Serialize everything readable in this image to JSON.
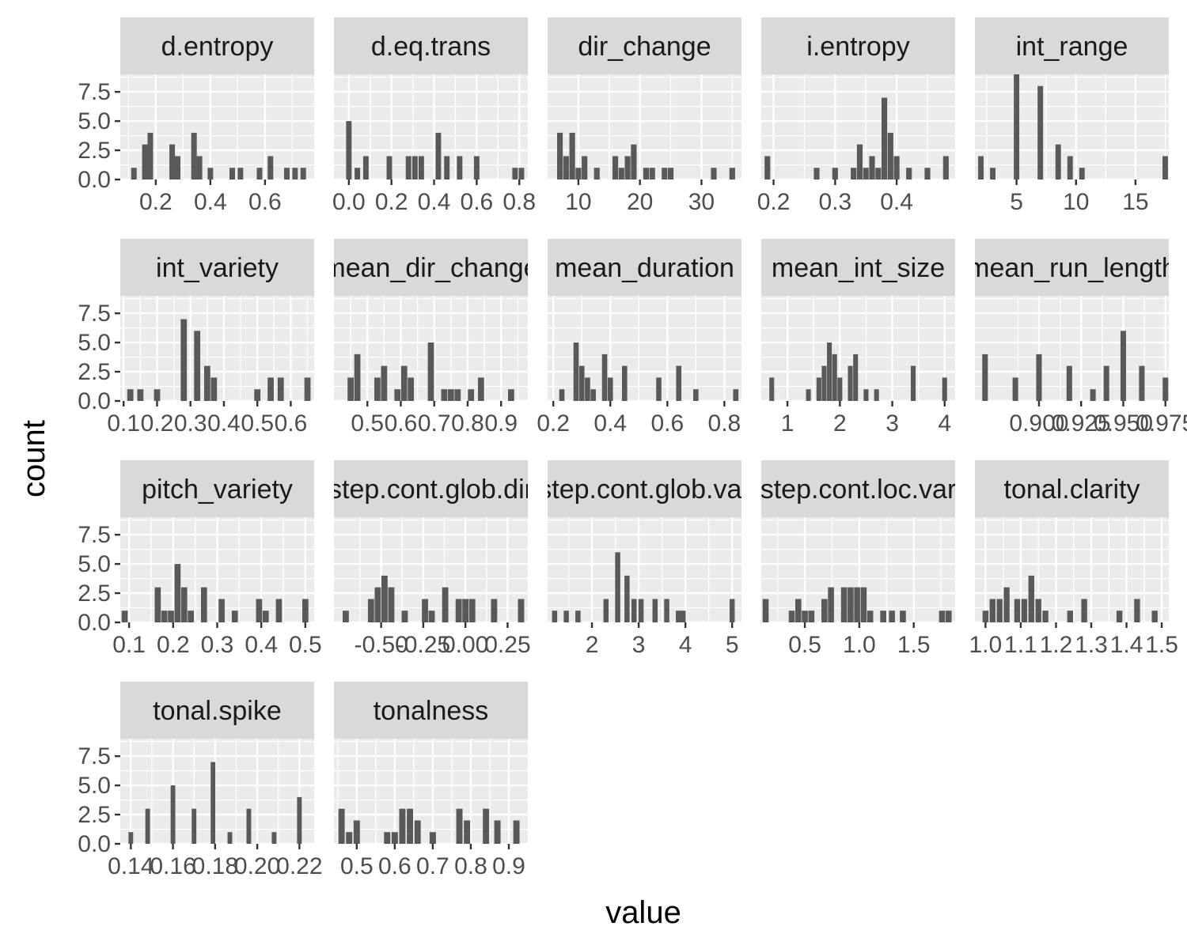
{
  "chart_data": {
    "type": "bar",
    "xlabel": "value",
    "ylabel": "count",
    "ylim": [
      0,
      9
    ],
    "y_ticks": [
      0.0,
      2.5,
      5.0,
      7.5
    ],
    "y_tick_labels": [
      "0.0",
      "2.5",
      "5.0",
      "7.5"
    ],
    "colors": {
      "panel_bg": "#ebebeb",
      "strip_bg": "#d9d9d9",
      "grid": "#ffffff",
      "bar": "#595959",
      "tick": "#333333"
    },
    "panels": [
      {
        "name": "d.entropy",
        "xlim": [
          0.07,
          0.78
        ],
        "bin_width": 0.022,
        "x_ticks": [
          0.2,
          0.4,
          0.6
        ],
        "x_tick_labels": [
          "0.2",
          "0.4",
          "0.6"
        ],
        "bins": [
          [
            0.12,
            1
          ],
          [
            0.16,
            3
          ],
          [
            0.18,
            4
          ],
          [
            0.26,
            3
          ],
          [
            0.28,
            2
          ],
          [
            0.34,
            4
          ],
          [
            0.36,
            2
          ],
          [
            0.4,
            1
          ],
          [
            0.48,
            1
          ],
          [
            0.51,
            1
          ],
          [
            0.58,
            1
          ],
          [
            0.62,
            2
          ],
          [
            0.68,
            1
          ],
          [
            0.71,
            1
          ],
          [
            0.74,
            1
          ]
        ]
      },
      {
        "name": "d.eq.trans",
        "xlim": [
          -0.07,
          0.84
        ],
        "bin_width": 0.028,
        "x_ticks": [
          0.0,
          0.2,
          0.4,
          0.6,
          0.8
        ],
        "x_tick_labels": [
          "0.0",
          "0.2",
          "0.4",
          "0.6",
          "0.8"
        ],
        "bins": [
          [
            0.0,
            5
          ],
          [
            0.04,
            1
          ],
          [
            0.08,
            2
          ],
          [
            0.19,
            2
          ],
          [
            0.28,
            2
          ],
          [
            0.31,
            2
          ],
          [
            0.34,
            2
          ],
          [
            0.42,
            4
          ],
          [
            0.46,
            2
          ],
          [
            0.52,
            2
          ],
          [
            0.6,
            2
          ],
          [
            0.78,
            1
          ],
          [
            0.81,
            1
          ]
        ]
      },
      {
        "name": "dir_change",
        "xlim": [
          5,
          36.5
        ],
        "bin_width": 1.0,
        "x_ticks": [
          10,
          20,
          30
        ],
        "x_tick_labels": [
          "10",
          "20",
          "30"
        ],
        "bins": [
          [
            7,
            4
          ],
          [
            8,
            2
          ],
          [
            9,
            4
          ],
          [
            10,
            1
          ],
          [
            11,
            2
          ],
          [
            13,
            1
          ],
          [
            16,
            2
          ],
          [
            17,
            1
          ],
          [
            18,
            2
          ],
          [
            19,
            3
          ],
          [
            21,
            1
          ],
          [
            22,
            1
          ],
          [
            24,
            1
          ],
          [
            25,
            1
          ],
          [
            32,
            1
          ],
          [
            35,
            1
          ]
        ]
      },
      {
        "name": "i.entropy",
        "xlim": [
          0.18,
          0.495
        ],
        "bin_width": 0.01,
        "x_ticks": [
          0.2,
          0.3,
          0.4
        ],
        "x_tick_labels": [
          "0.2",
          "0.3",
          "0.4"
        ],
        "bins": [
          [
            0.19,
            2
          ],
          [
            0.27,
            1
          ],
          [
            0.3,
            1
          ],
          [
            0.33,
            1
          ],
          [
            0.34,
            3
          ],
          [
            0.35,
            1
          ],
          [
            0.36,
            2
          ],
          [
            0.37,
            1
          ],
          [
            0.38,
            7
          ],
          [
            0.39,
            4
          ],
          [
            0.4,
            2
          ],
          [
            0.42,
            1
          ],
          [
            0.45,
            1
          ],
          [
            0.48,
            2
          ]
        ]
      },
      {
        "name": "int_range",
        "xlim": [
          1.5,
          17.8
        ],
        "bin_width": 0.5,
        "x_ticks": [
          5,
          10,
          15
        ],
        "x_tick_labels": [
          "5",
          "10",
          "15"
        ],
        "bins": [
          [
            2,
            2
          ],
          [
            3,
            1
          ],
          [
            5,
            9
          ],
          [
            7,
            8
          ],
          [
            8.5,
            3
          ],
          [
            9.5,
            2
          ],
          [
            10.5,
            1
          ],
          [
            17.5,
            2
          ]
        ]
      },
      {
        "name": "int_variety",
        "xlim": [
          0.09,
          0.67
        ],
        "bin_width": 0.02,
        "x_ticks": [
          0.1,
          0.2,
          0.3,
          0.4,
          0.5,
          0.6
        ],
        "x_tick_labels": [
          "0.1",
          "0.2",
          "0.3",
          "0.4",
          "0.5",
          "0.6"
        ],
        "bins": [
          [
            0.12,
            1
          ],
          [
            0.15,
            1
          ],
          [
            0.2,
            1
          ],
          [
            0.28,
            7
          ],
          [
            0.32,
            6
          ],
          [
            0.35,
            3
          ],
          [
            0.37,
            2
          ],
          [
            0.5,
            1
          ],
          [
            0.54,
            2
          ],
          [
            0.57,
            2
          ],
          [
            0.65,
            2
          ]
        ]
      },
      {
        "name": "mean_dir_change",
        "xlim": [
          0.4,
          0.98
        ],
        "bin_width": 0.02,
        "x_ticks": [
          0.5,
          0.6,
          0.7,
          0.8,
          0.9
        ],
        "x_tick_labels": [
          "0.5",
          "0.6",
          "0.7",
          "0.8",
          "0.9"
        ],
        "bins": [
          [
            0.45,
            2
          ],
          [
            0.47,
            4
          ],
          [
            0.53,
            2
          ],
          [
            0.55,
            3
          ],
          [
            0.59,
            1
          ],
          [
            0.61,
            3
          ],
          [
            0.63,
            2
          ],
          [
            0.69,
            5
          ],
          [
            0.73,
            1
          ],
          [
            0.75,
            1
          ],
          [
            0.77,
            1
          ],
          [
            0.81,
            1
          ],
          [
            0.84,
            2
          ],
          [
            0.93,
            1
          ]
        ]
      },
      {
        "name": "mean_duration",
        "xlim": [
          0.18,
          0.86
        ],
        "bin_width": 0.02,
        "x_ticks": [
          0.2,
          0.4,
          0.6,
          0.8
        ],
        "x_tick_labels": [
          "0.2",
          "0.4",
          "0.6",
          "0.8"
        ],
        "bins": [
          [
            0.23,
            1
          ],
          [
            0.28,
            5
          ],
          [
            0.3,
            3
          ],
          [
            0.32,
            2
          ],
          [
            0.34,
            1
          ],
          [
            0.38,
            4
          ],
          [
            0.4,
            2
          ],
          [
            0.45,
            3
          ],
          [
            0.57,
            2
          ],
          [
            0.64,
            3
          ],
          [
            0.7,
            1
          ],
          [
            0.84,
            1
          ]
        ]
      },
      {
        "name": "mean_int_size",
        "xlim": [
          0.5,
          4.2
        ],
        "bin_width": 0.1,
        "x_ticks": [
          1,
          2,
          3,
          4
        ],
        "x_tick_labels": [
          "1",
          "2",
          "3",
          "4"
        ],
        "bins": [
          [
            0.7,
            2
          ],
          [
            1.4,
            1
          ],
          [
            1.6,
            2
          ],
          [
            1.7,
            3
          ],
          [
            1.8,
            5
          ],
          [
            1.9,
            4
          ],
          [
            2.0,
            2
          ],
          [
            2.2,
            3
          ],
          [
            2.3,
            4
          ],
          [
            2.5,
            1
          ],
          [
            2.7,
            1
          ],
          [
            3.4,
            3
          ],
          [
            4.0,
            2
          ]
        ]
      },
      {
        "name": "mean_run_length",
        "xlim": [
          0.862,
          0.977
        ],
        "bin_width": 0.0036,
        "x_ticks": [
          0.9,
          0.925,
          0.95,
          0.975
        ],
        "x_tick_labels": [
          "0.900",
          "0.925",
          "0.950",
          "0.975"
        ],
        "bins": [
          [
            0.868,
            4
          ],
          [
            0.886,
            2
          ],
          [
            0.9,
            4
          ],
          [
            0.918,
            3
          ],
          [
            0.932,
            1
          ],
          [
            0.94,
            3
          ],
          [
            0.95,
            6
          ],
          [
            0.961,
            3
          ],
          [
            0.975,
            2
          ]
        ]
      },
      {
        "name": "pitch_variety",
        "xlim": [
          0.08,
          0.52
        ],
        "bin_width": 0.015,
        "x_ticks": [
          0.1,
          0.2,
          0.3,
          0.4,
          0.5
        ],
        "x_tick_labels": [
          "0.1",
          "0.2",
          "0.3",
          "0.4",
          "0.5"
        ],
        "bins": [
          [
            0.09,
            1
          ],
          [
            0.165,
            3
          ],
          [
            0.18,
            1
          ],
          [
            0.195,
            1
          ],
          [
            0.21,
            5
          ],
          [
            0.225,
            3
          ],
          [
            0.24,
            1
          ],
          [
            0.27,
            3
          ],
          [
            0.31,
            2
          ],
          [
            0.34,
            1
          ],
          [
            0.395,
            2
          ],
          [
            0.41,
            1
          ],
          [
            0.44,
            2
          ],
          [
            0.5,
            2
          ]
        ]
      },
      {
        "name": "step.cont.glob.dir",
        "xlim": [
          -0.78,
          0.37
        ],
        "bin_width": 0.04,
        "x_ticks": [
          -0.5,
          -0.25,
          0.0,
          0.25
        ],
        "x_tick_labels": [
          "-0.50",
          "-0.25",
          "0.00",
          "0.25"
        ],
        "bins": [
          [
            -0.71,
            1
          ],
          [
            -0.56,
            2
          ],
          [
            -0.52,
            3
          ],
          [
            -0.48,
            4
          ],
          [
            -0.44,
            3
          ],
          [
            -0.36,
            1
          ],
          [
            -0.24,
            2
          ],
          [
            -0.2,
            1
          ],
          [
            -0.12,
            3
          ],
          [
            -0.04,
            2
          ],
          [
            0.0,
            2
          ],
          [
            0.04,
            2
          ],
          [
            0.17,
            2
          ],
          [
            0.33,
            2
          ]
        ]
      },
      {
        "name": "step.cont.glob.var",
        "xlim": [
          1.05,
          5.2
        ],
        "bin_width": 0.12,
        "x_ticks": [
          2,
          3,
          4,
          5
        ],
        "x_tick_labels": [
          "2",
          "3",
          "4",
          "5"
        ],
        "bins": [
          [
            1.2,
            1
          ],
          [
            1.45,
            1
          ],
          [
            1.7,
            1
          ],
          [
            2.3,
            2
          ],
          [
            2.55,
            6
          ],
          [
            2.75,
            4
          ],
          [
            2.9,
            2
          ],
          [
            3.05,
            2
          ],
          [
            3.35,
            2
          ],
          [
            3.6,
            2
          ],
          [
            3.95,
            1
          ],
          [
            3.85,
            1
          ],
          [
            5.0,
            2
          ]
        ]
      },
      {
        "name": "step.cont.loc.var",
        "xlim": [
          0.1,
          1.88
        ],
        "bin_width": 0.06,
        "x_ticks": [
          0.5,
          1.0,
          1.5
        ],
        "x_tick_labels": [
          "0.5",
          "1.0",
          "1.5"
        ],
        "bins": [
          [
            0.14,
            2
          ],
          [
            0.38,
            1
          ],
          [
            0.44,
            2
          ],
          [
            0.5,
            1
          ],
          [
            0.56,
            1
          ],
          [
            0.68,
            2
          ],
          [
            0.74,
            3
          ],
          [
            0.86,
            3
          ],
          [
            0.92,
            3
          ],
          [
            0.98,
            3
          ],
          [
            1.04,
            3
          ],
          [
            1.1,
            1
          ],
          [
            1.22,
            1
          ],
          [
            1.3,
            1
          ],
          [
            1.4,
            1
          ],
          [
            1.76,
            1
          ],
          [
            1.82,
            1
          ]
        ]
      },
      {
        "name": "tonal.clarity",
        "xlim": [
          0.97,
          1.52
        ],
        "bin_width": 0.018,
        "x_ticks": [
          1.0,
          1.1,
          1.2,
          1.3,
          1.4,
          1.5
        ],
        "x_tick_labels": [
          "1.0",
          "1.1",
          "1.2",
          "1.3",
          "1.4",
          "1.5"
        ],
        "bins": [
          [
            1.0,
            1
          ],
          [
            1.02,
            2
          ],
          [
            1.04,
            2
          ],
          [
            1.06,
            3
          ],
          [
            1.09,
            2
          ],
          [
            1.11,
            2
          ],
          [
            1.13,
            4
          ],
          [
            1.15,
            2
          ],
          [
            1.17,
            1
          ],
          [
            1.24,
            1
          ],
          [
            1.28,
            2
          ],
          [
            1.38,
            1
          ],
          [
            1.43,
            2
          ],
          [
            1.48,
            1
          ]
        ]
      },
      {
        "name": "tonal.spike",
        "xlim": [
          0.135,
          0.227
        ],
        "bin_width": 0.0024,
        "x_ticks": [
          0.14,
          0.16,
          0.18,
          0.2,
          0.22
        ],
        "x_tick_labels": [
          "0.14",
          "0.16",
          "0.18",
          "0.20",
          "0.22"
        ],
        "bins": [
          [
            0.14,
            1
          ],
          [
            0.148,
            3
          ],
          [
            0.16,
            5
          ],
          [
            0.17,
            3
          ],
          [
            0.179,
            7
          ],
          [
            0.187,
            1
          ],
          [
            0.196,
            3
          ],
          [
            0.208,
            1
          ],
          [
            0.22,
            4
          ]
        ]
      },
      {
        "name": "tonalness",
        "xlim": [
          0.44,
          0.95
        ],
        "bin_width": 0.018,
        "x_ticks": [
          0.5,
          0.6,
          0.7,
          0.8,
          0.9
        ],
        "x_tick_labels": [
          "0.5",
          "0.6",
          "0.7",
          "0.8",
          "0.9"
        ],
        "bins": [
          [
            0.46,
            3
          ],
          [
            0.48,
            1
          ],
          [
            0.5,
            2
          ],
          [
            0.58,
            1
          ],
          [
            0.6,
            1
          ],
          [
            0.62,
            3
          ],
          [
            0.64,
            3
          ],
          [
            0.66,
            2
          ],
          [
            0.7,
            1
          ],
          [
            0.77,
            3
          ],
          [
            0.79,
            2
          ],
          [
            0.84,
            3
          ],
          [
            0.87,
            2
          ],
          [
            0.92,
            2
          ]
        ]
      }
    ]
  }
}
